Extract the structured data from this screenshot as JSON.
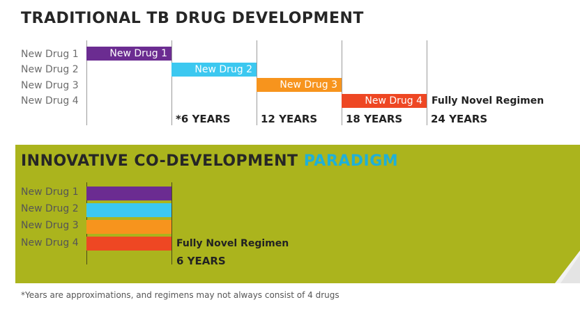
{
  "traditional": {
    "title": "TRADITIONAL TB DRUG DEVELOPMENT",
    "row_labels": [
      "New Drug 1",
      "New Drug 2",
      "New Drug 3",
      "New Drug 4"
    ],
    "bar_labels": [
      "New Drug 1",
      "New Drug 2",
      "New Drug 3",
      "New Drug 4"
    ],
    "tick_labels": [
      "*6 YEARS",
      "12 YEARS",
      "18 YEARS",
      "24 YEARS"
    ],
    "end_label": "Fully Novel Regimen"
  },
  "innovative": {
    "title_main": "INNOVATIVE CO-DEVELOPMENT",
    "title_accent": "PARADIGM",
    "row_labels": [
      "New Drug 1",
      "New Drug 2",
      "New Drug 3",
      "New Drug 4"
    ],
    "tick_label": "6 YEARS",
    "end_label": "Fully Novel Regimen"
  },
  "footnote": "*Years are approximations, and regimens may not always consist of 4 drugs",
  "colors": {
    "drug1": "#6b2c91",
    "drug2": "#3cc8f0",
    "drug3": "#f7941d",
    "drug4": "#ee4723",
    "panel_bg": "#abb41d",
    "accent_text": "#1fb0d8"
  },
  "chart_data": [
    {
      "type": "bar",
      "subtype": "gantt",
      "title": "TRADITIONAL TB DRUG DEVELOPMENT",
      "categories": [
        "New Drug 1",
        "New Drug 2",
        "New Drug 3",
        "New Drug 4"
      ],
      "series": [
        {
          "name": "start_years",
          "values": [
            0,
            6,
            12,
            18
          ]
        },
        {
          "name": "end_years",
          "values": [
            6,
            12,
            18,
            24
          ]
        }
      ],
      "x_ticks": [
        6,
        12,
        18,
        24
      ],
      "x_tick_labels": [
        "*6 YEARS",
        "12 YEARS",
        "18 YEARS",
        "24 YEARS"
      ],
      "xlim": [
        0,
        24
      ],
      "annotations": [
        "Fully Novel Regimen"
      ]
    },
    {
      "type": "bar",
      "subtype": "gantt",
      "title": "INNOVATIVE CO-DEVELOPMENT PARADIGM",
      "categories": [
        "New Drug 1",
        "New Drug 2",
        "New Drug 3",
        "New Drug 4"
      ],
      "series": [
        {
          "name": "start_years",
          "values": [
            0,
            0,
            0,
            0
          ]
        },
        {
          "name": "end_years",
          "values": [
            6,
            6,
            6,
            6
          ]
        }
      ],
      "x_ticks": [
        6
      ],
      "x_tick_labels": [
        "6 YEARS"
      ],
      "xlim": [
        0,
        24
      ],
      "annotations": [
        "Fully Novel Regimen"
      ]
    }
  ]
}
